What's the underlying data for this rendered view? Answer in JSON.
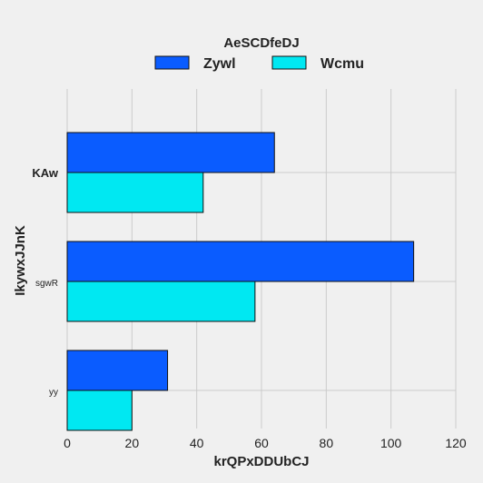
{
  "chart_data": {
    "type": "bar",
    "orientation": "horizontal",
    "title": "",
    "legend_title": "AeSCDfeDJ",
    "legend_position": "top-center",
    "xlabel": "krQPxDDUbCJ",
    "ylabel": "IkywxJJnK",
    "xlim": [
      0,
      120
    ],
    "xticks": [
      0,
      20,
      40,
      60,
      80,
      100,
      120
    ],
    "grid": true,
    "categories": [
      "KAw",
      "sgwR",
      "yy"
    ],
    "series": [
      {
        "name": "Zywl",
        "color": "#0a5cff",
        "values": [
          64,
          107,
          31
        ]
      },
      {
        "name": "Wcmu",
        "color": "#00e8f2",
        "values": [
          42,
          58,
          20
        ]
      }
    ]
  }
}
